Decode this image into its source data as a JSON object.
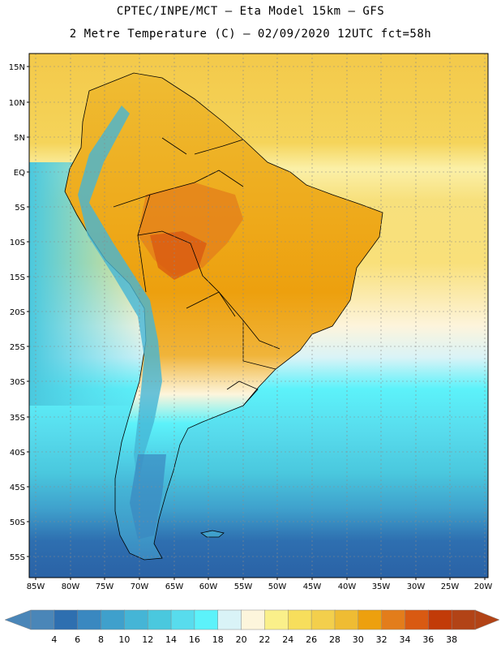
{
  "header": {
    "line1": "CPTEC/INPE/MCT –  Eta Model 15km – GFS",
    "line2": "2 Metre Temperature (C) – 02/09/2020 12UTC fct=58h"
  },
  "map": {
    "region": "South America",
    "lat_labels": [
      "15N",
      "10N",
      "5N",
      "EQ",
      "5S",
      "10S",
      "15S",
      "20S",
      "25S",
      "30S",
      "35S",
      "40S",
      "45S",
      "50S",
      "55S"
    ],
    "lon_labels": [
      "85W",
      "80W",
      "75W",
      "70W",
      "65W",
      "60W",
      "55W",
      "50W",
      "45W",
      "40W",
      "35W",
      "30W",
      "25W",
      "20W"
    ]
  },
  "colorbar": {
    "labels": [
      "4",
      "6",
      "8",
      "10",
      "12",
      "14",
      "16",
      "18",
      "20",
      "22",
      "24",
      "26",
      "28",
      "30",
      "32",
      "34",
      "36",
      "38"
    ],
    "colors": [
      "#4a86b8",
      "#2e6fb0",
      "#3a88c0",
      "#3fa0cc",
      "#45b5d6",
      "#4ac8de",
      "#58dced",
      "#5cf2fa",
      "#d9f3f7",
      "#fdf5dc",
      "#faf08a",
      "#f7de5c",
      "#f3cf4c",
      "#efbc33",
      "#eda00e",
      "#e37d1b",
      "#d95a12",
      "#c23b08",
      "#b24316"
    ]
  }
}
